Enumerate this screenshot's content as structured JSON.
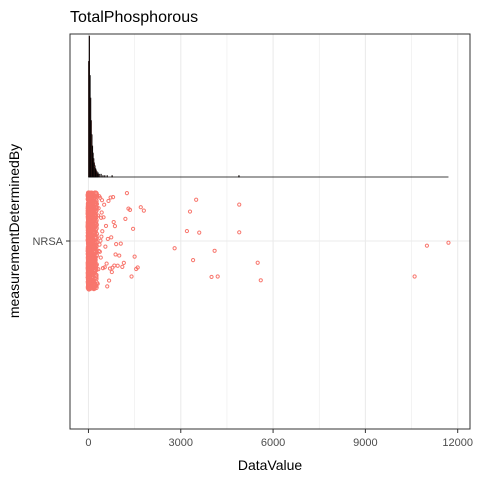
{
  "chart_data": {
    "type": "scatter",
    "title": "TotalPhosphorous",
    "xlabel": "DataValue",
    "ylabel": "measurementDeterminedBy",
    "categories": [
      "NRSA"
    ],
    "xlim": [
      -600,
      12400
    ],
    "x_ticks": [
      0,
      3000,
      6000,
      9000,
      12000
    ],
    "x_tick_labels": [
      "0",
      "3000",
      "6000",
      "9000",
      "12000"
    ],
    "grid": true,
    "colors": {
      "points": "#F8766D",
      "histogram_fill": "#F8766D",
      "histogram_outline": "#000000",
      "grid": "#EBEBEB",
      "panel_border": "#333333"
    },
    "series": [
      {
        "category": "NRSA",
        "values": [
          3200,
          3300,
          3600,
          3500,
          3400,
          2800,
          4100,
          4200,
          4000,
          4900,
          4900,
          5500,
          5600,
          10600,
          11000,
          11700,
          900,
          950,
          1000,
          1050,
          1100,
          1150,
          1200,
          1250,
          1300,
          1350,
          1400,
          1450,
          1500,
          1550,
          1600,
          1700,
          1800,
          700,
          720,
          740,
          760,
          780,
          800,
          820,
          840,
          860,
          880,
          450,
          470,
          490,
          510,
          530,
          550,
          570,
          590,
          610,
          630,
          650,
          670,
          300,
          310,
          320,
          330,
          340,
          350,
          360,
          370,
          380,
          390,
          400,
          410,
          420,
          430,
          440
        ]
      }
    ],
    "histogram": {
      "bin_width": 20,
      "bins": [
        {
          "x": 0,
          "count": 82
        },
        {
          "x": 20,
          "count": 100
        },
        {
          "x": 40,
          "count": 72
        },
        {
          "x": 60,
          "count": 56
        },
        {
          "x": 80,
          "count": 40
        },
        {
          "x": 100,
          "count": 30
        },
        {
          "x": 120,
          "count": 22
        },
        {
          "x": 140,
          "count": 17
        },
        {
          "x": 160,
          "count": 13
        },
        {
          "x": 180,
          "count": 10
        },
        {
          "x": 200,
          "count": 8
        },
        {
          "x": 220,
          "count": 6
        },
        {
          "x": 240,
          "count": 5
        },
        {
          "x": 260,
          "count": 4
        },
        {
          "x": 280,
          "count": 3
        },
        {
          "x": 300,
          "count": 3
        },
        {
          "x": 340,
          "count": 2
        },
        {
          "x": 400,
          "count": 2
        },
        {
          "x": 460,
          "count": 1
        },
        {
          "x": 520,
          "count": 1
        },
        {
          "x": 600,
          "count": 1
        },
        {
          "x": 760,
          "count": 1
        },
        {
          "x": 4880,
          "count": 1
        }
      ]
    }
  }
}
